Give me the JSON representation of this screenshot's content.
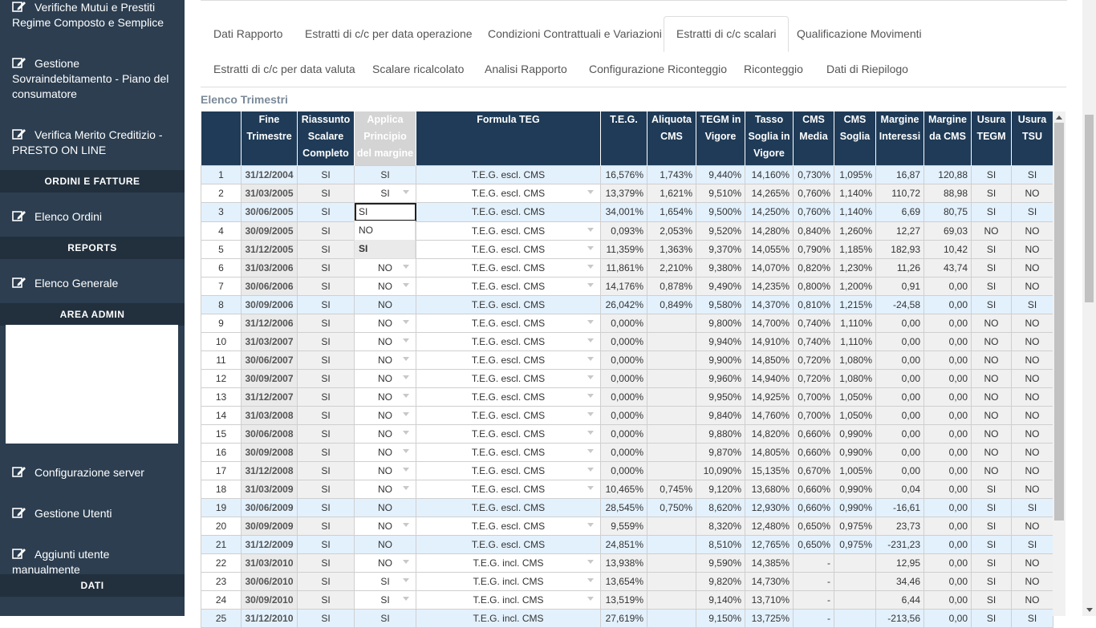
{
  "sidebar": {
    "items": [
      {
        "label": "Verifiche Mutui e Prestiti Regime Composto e Semplice"
      },
      {
        "label": "Gestione Sovraindebitamento - Piano del consumatore"
      },
      {
        "label": "Verifica Merito Creditizio - PRESTO ON LINE"
      },
      {
        "label": "Elenco Ordini"
      },
      {
        "label": "Elenco Generale"
      },
      {
        "label": "Configurazione server"
      },
      {
        "label": "Gestione Utenti"
      },
      {
        "label": "Aggiunti utente manualmente"
      }
    ],
    "headers": [
      "ORDINI E FATTURE",
      "REPORTS",
      "AREA ADMIN",
      "DATI"
    ]
  },
  "tabs": {
    "row1": [
      "Dati Rapporto",
      "Estratti di c/c per data operazione",
      "Condizioni Contrattuali e Variazioni",
      "Estratti di c/c scalari",
      "Qualificazione Movimenti"
    ],
    "row2": [
      "Estratti di c/c per data valuta",
      "Scalare ricalcolato",
      "Analisi Rapporto",
      "Configurazione Riconteggio",
      "Riconteggio",
      "Dati di Riepilogo"
    ],
    "active": "Estratti di c/c scalari"
  },
  "section_title": "Elenco Trimestri",
  "table": {
    "headers": [
      "",
      "Fine Trimestre",
      "Riassunto Scalare Completo",
      "Applica Principio del margine",
      "Formula TEG",
      "T.E.G.",
      "Aliquota CMS",
      "TEGM in Vigore",
      "Tasso Soglia in Vigore",
      "CMS Media",
      "CMS Soglia",
      "Margine Interessi",
      "Margine da CMS",
      "Usura TEGM",
      "Usura TSU"
    ],
    "rows": [
      {
        "n": "1",
        "date": "31/12/2004",
        "rs": "SI",
        "ap": "SI",
        "f": "T.E.G. escl. CMS",
        "teg": "16,576%",
        "aliq": "1,743%",
        "tegm": "9,440%",
        "ts": "14,160%",
        "cmsm": "0,730%",
        "cmss": "1,095%",
        "mi": "16,87",
        "mc": "120,88",
        "ut": "SI",
        "uts": "SI",
        "hl": true,
        "dd": false
      },
      {
        "n": "2",
        "date": "31/03/2005",
        "rs": "SI",
        "ap": "SI",
        "f": "T.E.G. escl. CMS",
        "teg": "13,379%",
        "aliq": "1,621%",
        "tegm": "9,510%",
        "ts": "14,265%",
        "cmsm": "0,760%",
        "cmss": "1,140%",
        "mi": "110,72",
        "mc": "88,98",
        "ut": "SI",
        "uts": "NO",
        "hl": false,
        "dd": true
      },
      {
        "n": "3",
        "date": "30/06/2005",
        "rs": "SI",
        "ap": "SI",
        "f": "T.E.G. escl. CMS",
        "teg": "34,001%",
        "aliq": "1,654%",
        "tegm": "9,500%",
        "ts": "14,250%",
        "cmsm": "0,760%",
        "cmss": "1,140%",
        "mi": "6,69",
        "mc": "80,75",
        "ut": "SI",
        "uts": "SI",
        "hl": true,
        "dd": false,
        "edit": true
      },
      {
        "n": "4",
        "date": "30/09/2005",
        "rs": "SI",
        "ap": "",
        "f": "T.E.G. escl. CMS",
        "teg": "0,093%",
        "aliq": "2,053%",
        "tegm": "9,520%",
        "ts": "14,280%",
        "cmsm": "0,840%",
        "cmss": "1,260%",
        "mi": "12,27",
        "mc": "69,03",
        "ut": "NO",
        "uts": "NO",
        "hl": false,
        "dd": true
      },
      {
        "n": "5",
        "date": "31/12/2005",
        "rs": "SI",
        "ap": "",
        "f": "T.E.G. escl. CMS",
        "teg": "11,359%",
        "aliq": "1,363%",
        "tegm": "9,370%",
        "ts": "14,055%",
        "cmsm": "0,790%",
        "cmss": "1,185%",
        "mi": "182,93",
        "mc": "10,42",
        "ut": "SI",
        "uts": "NO",
        "hl": false,
        "dd": true
      },
      {
        "n": "6",
        "date": "31/03/2006",
        "rs": "SI",
        "ap": "NO",
        "f": "T.E.G. escl. CMS",
        "teg": "11,861%",
        "aliq": "2,210%",
        "tegm": "9,380%",
        "ts": "14,070%",
        "cmsm": "0,820%",
        "cmss": "1,230%",
        "mi": "11,26",
        "mc": "43,74",
        "ut": "SI",
        "uts": "NO",
        "hl": false,
        "dd": true
      },
      {
        "n": "7",
        "date": "30/06/2006",
        "rs": "SI",
        "ap": "NO",
        "f": "T.E.G. escl. CMS",
        "teg": "14,176%",
        "aliq": "0,878%",
        "tegm": "9,490%",
        "ts": "14,235%",
        "cmsm": "0,800%",
        "cmss": "1,200%",
        "mi": "0,91",
        "mc": "0,00",
        "ut": "SI",
        "uts": "NO",
        "hl": false,
        "dd": true
      },
      {
        "n": "8",
        "date": "30/09/2006",
        "rs": "SI",
        "ap": "NO",
        "f": "T.E.G. escl. CMS",
        "teg": "26,042%",
        "aliq": "0,849%",
        "tegm": "9,580%",
        "ts": "14,370%",
        "cmsm": "0,810%",
        "cmss": "1,215%",
        "mi": "-24,58",
        "mc": "0,00",
        "ut": "SI",
        "uts": "SI",
        "hl": true,
        "dd": false
      },
      {
        "n": "9",
        "date": "31/12/2006",
        "rs": "SI",
        "ap": "NO",
        "f": "T.E.G. escl. CMS",
        "teg": "0,000%",
        "aliq": "",
        "tegm": "9,800%",
        "ts": "14,700%",
        "cmsm": "0,740%",
        "cmss": "1,110%",
        "mi": "0,00",
        "mc": "0,00",
        "ut": "NO",
        "uts": "NO",
        "hl": false,
        "dd": true
      },
      {
        "n": "10",
        "date": "31/03/2007",
        "rs": "SI",
        "ap": "NO",
        "f": "T.E.G. escl. CMS",
        "teg": "0,000%",
        "aliq": "",
        "tegm": "9,940%",
        "ts": "14,910%",
        "cmsm": "0,740%",
        "cmss": "1,110%",
        "mi": "0,00",
        "mc": "0,00",
        "ut": "NO",
        "uts": "NO",
        "hl": false,
        "dd": true
      },
      {
        "n": "11",
        "date": "30/06/2007",
        "rs": "SI",
        "ap": "NO",
        "f": "T.E.G. escl. CMS",
        "teg": "0,000%",
        "aliq": "",
        "tegm": "9,900%",
        "ts": "14,850%",
        "cmsm": "0,720%",
        "cmss": "1,080%",
        "mi": "0,00",
        "mc": "0,00",
        "ut": "NO",
        "uts": "NO",
        "hl": false,
        "dd": true
      },
      {
        "n": "12",
        "date": "30/09/2007",
        "rs": "SI",
        "ap": "NO",
        "f": "T.E.G. escl. CMS",
        "teg": "0,000%",
        "aliq": "",
        "tegm": "9,960%",
        "ts": "14,940%",
        "cmsm": "0,720%",
        "cmss": "1,080%",
        "mi": "0,00",
        "mc": "0,00",
        "ut": "NO",
        "uts": "NO",
        "hl": false,
        "dd": true
      },
      {
        "n": "13",
        "date": "31/12/2007",
        "rs": "SI",
        "ap": "NO",
        "f": "T.E.G. escl. CMS",
        "teg": "0,000%",
        "aliq": "",
        "tegm": "9,950%",
        "ts": "14,925%",
        "cmsm": "0,700%",
        "cmss": "1,050%",
        "mi": "0,00",
        "mc": "0,00",
        "ut": "NO",
        "uts": "NO",
        "hl": false,
        "dd": true
      },
      {
        "n": "14",
        "date": "31/03/2008",
        "rs": "SI",
        "ap": "NO",
        "f": "T.E.G. escl. CMS",
        "teg": "0,000%",
        "aliq": "",
        "tegm": "9,840%",
        "ts": "14,760%",
        "cmsm": "0,700%",
        "cmss": "1,050%",
        "mi": "0,00",
        "mc": "0,00",
        "ut": "NO",
        "uts": "NO",
        "hl": false,
        "dd": true
      },
      {
        "n": "15",
        "date": "30/06/2008",
        "rs": "SI",
        "ap": "NO",
        "f": "T.E.G. escl. CMS",
        "teg": "0,000%",
        "aliq": "",
        "tegm": "9,880%",
        "ts": "14,820%",
        "cmsm": "0,660%",
        "cmss": "0,990%",
        "mi": "0,00",
        "mc": "0,00",
        "ut": "NO",
        "uts": "NO",
        "hl": false,
        "dd": true
      },
      {
        "n": "16",
        "date": "30/09/2008",
        "rs": "SI",
        "ap": "NO",
        "f": "T.E.G. escl. CMS",
        "teg": "0,000%",
        "aliq": "",
        "tegm": "9,870%",
        "ts": "14,805%",
        "cmsm": "0,660%",
        "cmss": "0,990%",
        "mi": "0,00",
        "mc": "0,00",
        "ut": "NO",
        "uts": "NO",
        "hl": false,
        "dd": true
      },
      {
        "n": "17",
        "date": "31/12/2008",
        "rs": "SI",
        "ap": "NO",
        "f": "T.E.G. escl. CMS",
        "teg": "0,000%",
        "aliq": "",
        "tegm": "10,090%",
        "ts": "15,135%",
        "cmsm": "0,670%",
        "cmss": "1,005%",
        "mi": "0,00",
        "mc": "0,00",
        "ut": "NO",
        "uts": "NO",
        "hl": false,
        "dd": true
      },
      {
        "n": "18",
        "date": "31/03/2009",
        "rs": "SI",
        "ap": "NO",
        "f": "T.E.G. escl. CMS",
        "teg": "10,465%",
        "aliq": "0,745%",
        "tegm": "9,120%",
        "ts": "13,680%",
        "cmsm": "0,660%",
        "cmss": "0,990%",
        "mi": "0,04",
        "mc": "0,00",
        "ut": "SI",
        "uts": "NO",
        "hl": false,
        "dd": true
      },
      {
        "n": "19",
        "date": "30/06/2009",
        "rs": "SI",
        "ap": "NO",
        "f": "T.E.G. escl. CMS",
        "teg": "28,545%",
        "aliq": "0,750%",
        "tegm": "8,620%",
        "ts": "12,930%",
        "cmsm": "0,660%",
        "cmss": "0,990%",
        "mi": "-16,61",
        "mc": "0,00",
        "ut": "SI",
        "uts": "SI",
        "hl": true,
        "dd": false
      },
      {
        "n": "20",
        "date": "30/09/2009",
        "rs": "SI",
        "ap": "NO",
        "f": "T.E.G. escl. CMS",
        "teg": "9,559%",
        "aliq": "",
        "tegm": "8,320%",
        "ts": "12,480%",
        "cmsm": "0,650%",
        "cmss": "0,975%",
        "mi": "23,73",
        "mc": "0,00",
        "ut": "SI",
        "uts": "NO",
        "hl": false,
        "dd": true
      },
      {
        "n": "21",
        "date": "31/12/2009",
        "rs": "SI",
        "ap": "NO",
        "f": "T.E.G. escl. CMS",
        "teg": "24,851%",
        "aliq": "",
        "tegm": "8,510%",
        "ts": "12,765%",
        "cmsm": "0,650%",
        "cmss": "0,975%",
        "mi": "-231,23",
        "mc": "0,00",
        "ut": "SI",
        "uts": "SI",
        "hl": true,
        "dd": false
      },
      {
        "n": "22",
        "date": "31/03/2010",
        "rs": "SI",
        "ap": "NO",
        "f": "T.E.G. incl. CMS",
        "teg": "13,938%",
        "aliq": "",
        "tegm": "9,590%",
        "ts": "14,385%",
        "cmsm": "-",
        "cmss": "",
        "mi": "12,95",
        "mc": "0,00",
        "ut": "SI",
        "uts": "NO",
        "hl": false,
        "dd": true
      },
      {
        "n": "23",
        "date": "30/06/2010",
        "rs": "SI",
        "ap": "SI",
        "f": "T.E.G. incl. CMS",
        "teg": "13,654%",
        "aliq": "",
        "tegm": "9,820%",
        "ts": "14,730%",
        "cmsm": "-",
        "cmss": "",
        "mi": "34,46",
        "mc": "0,00",
        "ut": "SI",
        "uts": "NO",
        "hl": false,
        "dd": true
      },
      {
        "n": "24",
        "date": "30/09/2010",
        "rs": "SI",
        "ap": "SI",
        "f": "T.E.G. incl. CMS",
        "teg": "13,519%",
        "aliq": "",
        "tegm": "9,140%",
        "ts": "13,710%",
        "cmsm": "-",
        "cmss": "",
        "mi": "6,44",
        "mc": "0,00",
        "ut": "SI",
        "uts": "NO",
        "hl": false,
        "dd": true
      },
      {
        "n": "25",
        "date": "31/12/2010",
        "rs": "SI",
        "ap": "SI",
        "f": "T.E.G. incl. CMS",
        "teg": "27,619%",
        "aliq": "",
        "tegm": "9,150%",
        "ts": "13,725%",
        "cmsm": "-",
        "cmss": "",
        "mi": "-213,56",
        "mc": "0,00",
        "ut": "SI",
        "uts": "SI",
        "hl": true,
        "dd": false
      }
    ]
  },
  "dropdown": {
    "options": [
      "NO",
      "SI"
    ],
    "current": "SI",
    "edit_value": "SI"
  }
}
